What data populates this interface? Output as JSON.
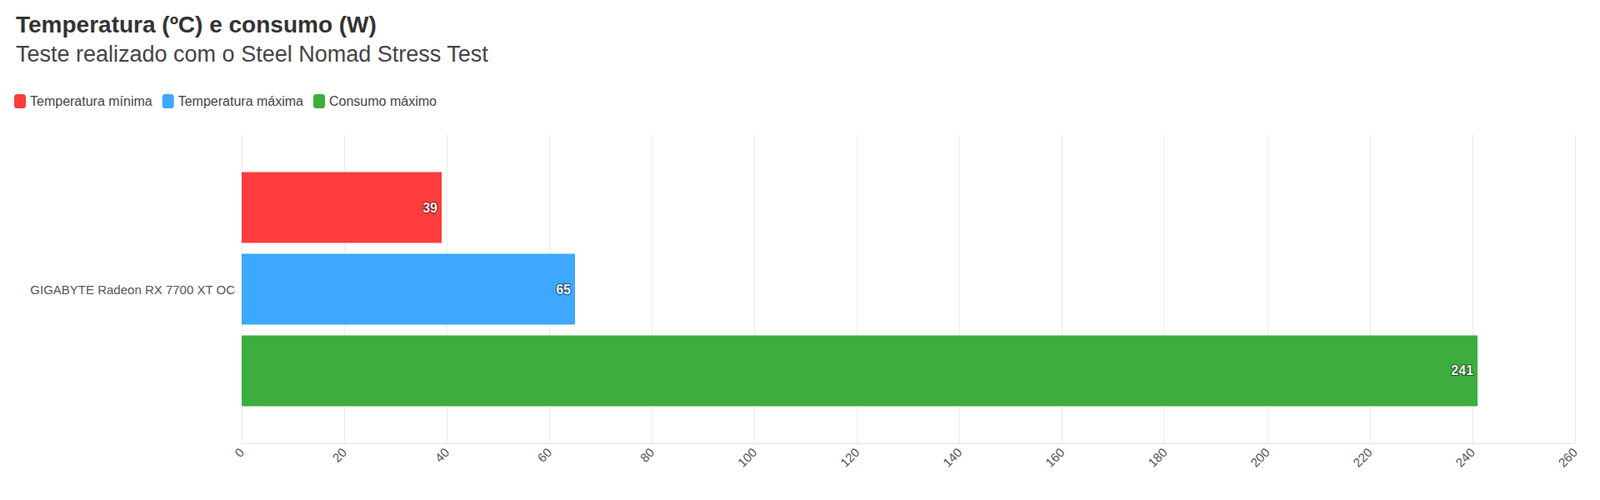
{
  "chart_data": {
    "type": "bar",
    "title": "Temperatura (ºC) e consumo (W)",
    "subtitle": "Teste realizado com o Steel Nomad Stress Test",
    "categories": [
      "GIGABYTE Radeon RX 7700 XT OC"
    ],
    "series": [
      {
        "name": "Temperatura mínima",
        "color": "#ff3333",
        "values": [
          39
        ]
      },
      {
        "name": "Temperatura máxima",
        "color": "#33a3ff",
        "values": [
          65
        ]
      },
      {
        "name": "Consumo máximo",
        "color": "#33aa33",
        "values": [
          241
        ]
      }
    ],
    "xlim": [
      0,
      260
    ],
    "xticks": [
      0,
      20,
      40,
      60,
      80,
      100,
      120,
      140,
      160,
      180,
      200,
      220,
      240,
      260
    ],
    "grid": true,
    "legend": "top-left",
    "orientation": "horizontal",
    "data_labels": true
  }
}
